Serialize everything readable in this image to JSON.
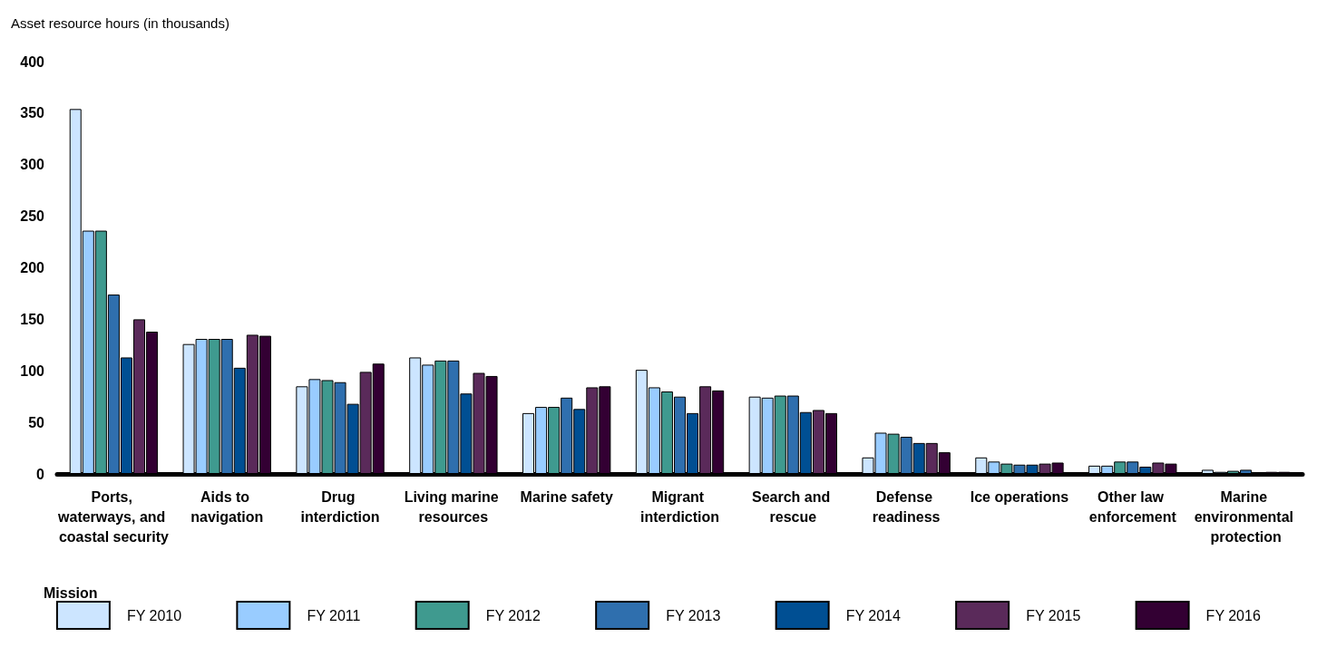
{
  "chart_data": {
    "type": "bar",
    "ylabel": "Asset resource hours (in thousands)",
    "xlabel": "Mission",
    "categories": [
      "Ports, waterways, and coastal security",
      "Aids to navigation",
      "Drug interdiction",
      "Living marine resources",
      "Marine safety",
      "Migrant interdiction",
      "Search and rescue",
      "Defense readiness",
      "Ice operations",
      "Other law enforcement",
      "Marine environmental protection"
    ],
    "series": [
      {
        "name": "FY 2010",
        "color": "#cce5ff",
        "values": [
          354,
          126,
          85,
          113,
          59,
          101,
          75,
          16,
          16,
          8,
          4
        ]
      },
      {
        "name": "FY 2011",
        "color": "#99ccff",
        "values": [
          236,
          131,
          92,
          106,
          65,
          84,
          74,
          40,
          12,
          8,
          2
        ]
      },
      {
        "name": "FY 2012",
        "color": "#3f9a8f",
        "values": [
          236,
          131,
          91,
          110,
          65,
          80,
          76,
          39,
          10,
          12,
          3
        ]
      },
      {
        "name": "FY 2013",
        "color": "#2f6fae",
        "values": [
          174,
          131,
          89,
          110,
          74,
          75,
          76,
          36,
          9,
          12,
          4
        ]
      },
      {
        "name": "FY 2014",
        "color": "#004f93",
        "values": [
          113,
          103,
          68,
          78,
          63,
          59,
          60,
          30,
          9,
          7,
          1
        ]
      },
      {
        "name": "FY 2015",
        "color": "#5a2a5a",
        "values": [
          150,
          135,
          99,
          98,
          84,
          85,
          62,
          30,
          10,
          11,
          2
        ]
      },
      {
        "name": "FY 2016",
        "color": "#330033",
        "values": [
          138,
          134,
          107,
          95,
          85,
          81,
          59,
          21,
          11,
          10,
          2
        ]
      }
    ],
    "ylim": [
      0,
      400
    ],
    "yticks": [
      0,
      50,
      100,
      150,
      200,
      250,
      300,
      350,
      400
    ],
    "grid": false,
    "legend": "bottom"
  }
}
